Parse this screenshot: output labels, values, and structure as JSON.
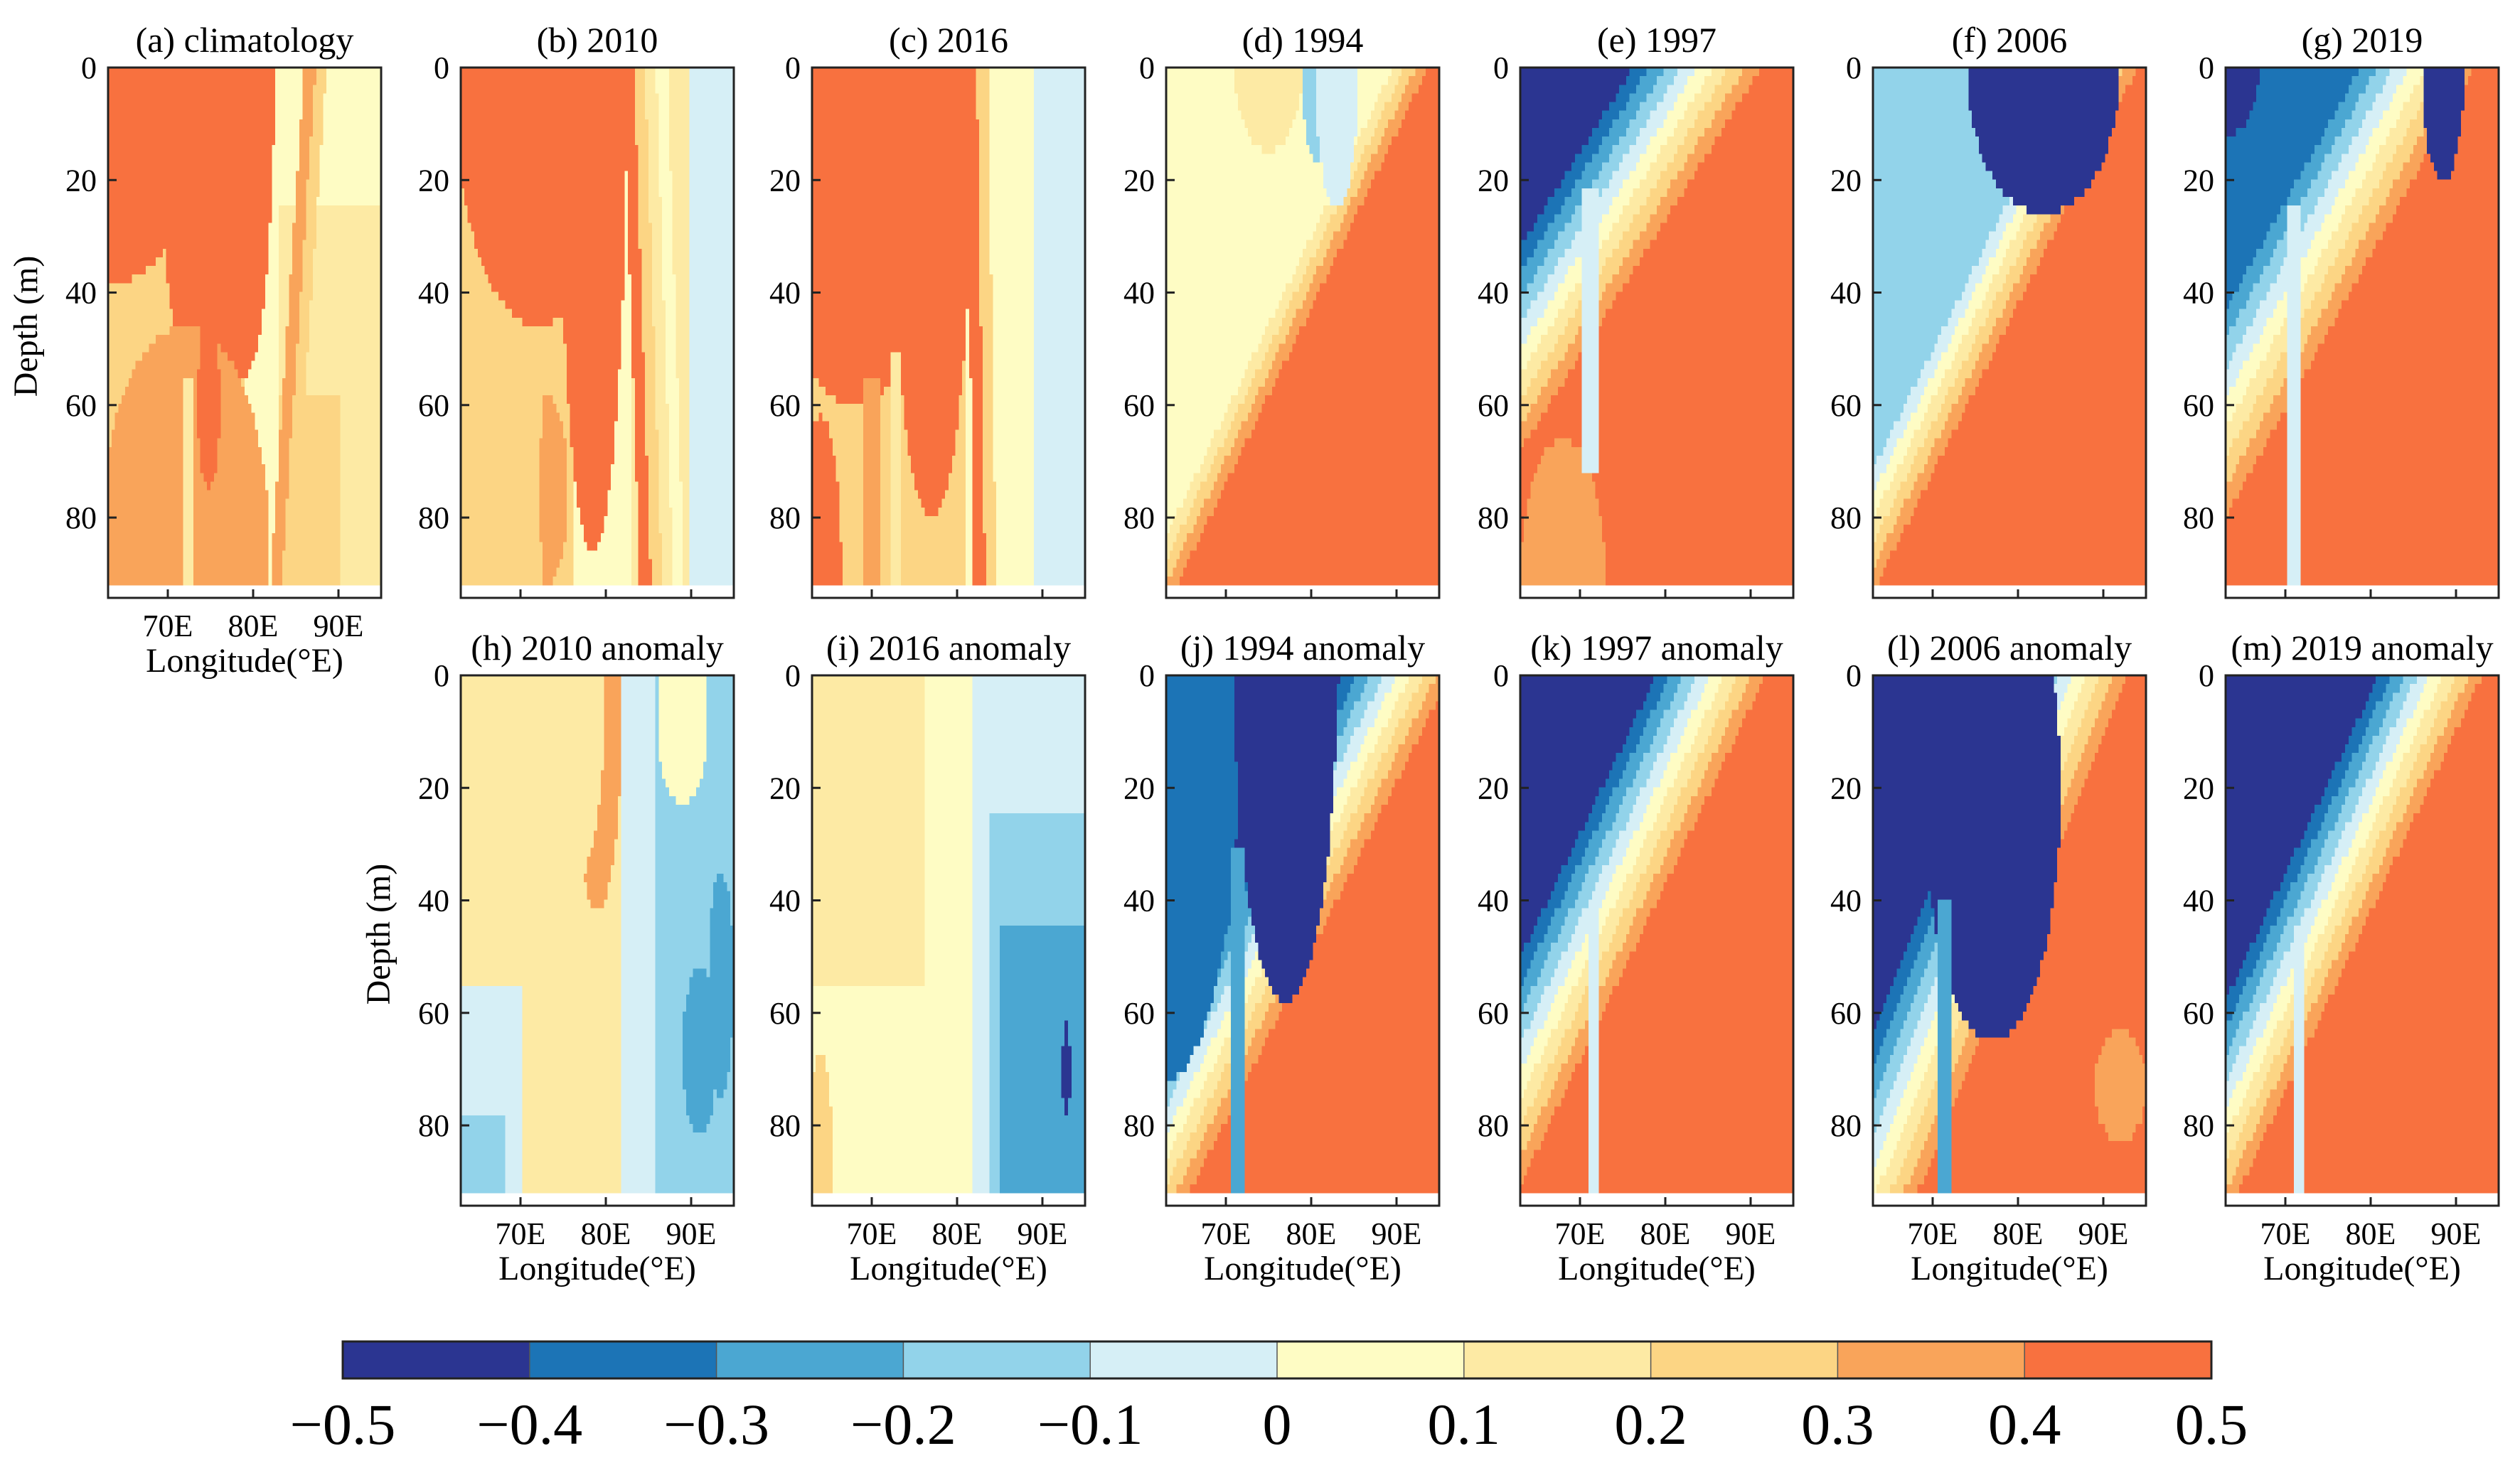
{
  "chart_data": {
    "type": "heatmap",
    "description": "Depth-longitude sections of a variable and its anomalies",
    "colorbar": {
      "ticks": [
        "−0.5",
        "−0.4",
        "−0.3",
        "−0.2",
        "−0.1",
        "0",
        "0.1",
        "0.2",
        "0.3",
        "0.4",
        "0.5"
      ],
      "bins": [
        {
          "from": -0.5,
          "to": -0.4,
          "color": "#2b3591"
        },
        {
          "from": -0.4,
          "to": -0.3,
          "color": "#1c74b6"
        },
        {
          "from": -0.3,
          "to": -0.2,
          "color": "#4ba7d2"
        },
        {
          "from": -0.2,
          "to": -0.1,
          "color": "#92d3ea"
        },
        {
          "from": -0.1,
          "to": 0.0,
          "color": "#d6eff6"
        },
        {
          "from": 0.0,
          "to": 0.1,
          "color": "#fefcc4"
        },
        {
          "from": 0.1,
          "to": 0.2,
          "color": "#fdeaa4"
        },
        {
          "from": 0.2,
          "to": 0.3,
          "color": "#fcd584"
        },
        {
          "from": 0.3,
          "to": 0.4,
          "color": "#f9a45a"
        },
        {
          "from": 0.4,
          "to": 0.5,
          "color": "#f8713f"
        }
      ]
    },
    "axes": {
      "xlabel": "Longitude(°E)",
      "ylabel": "Depth (m)",
      "xlim": [
        63,
        95
      ],
      "ylim": [
        0,
        92
      ],
      "xticks": [
        {
          "v": 70,
          "l": "70E"
        },
        {
          "v": 80,
          "l": "80E"
        },
        {
          "v": 90,
          "l": "90E"
        }
      ],
      "yticks": [
        {
          "v": 0,
          "l": "0"
        },
        {
          "v": 20,
          "l": "20"
        },
        {
          "v": 40,
          "l": "40"
        },
        {
          "v": 60,
          "l": "60"
        },
        {
          "v": 80,
          "l": "80"
        }
      ]
    },
    "panels": [
      {
        "id": "a",
        "title": "(a) climatology",
        "type": "clim",
        "ylabel": true,
        "xlabels": true,
        "layers": [
          [
            0.2,
            "x<=79"
          ],
          [
            0.1,
            "x>=83 && y>=25"
          ],
          [
            0.2,
            "x>=83 && x<=90 && y>=58"
          ]
        ],
        "fronts": [
          {
            "xs": 86,
            "xd": 82,
            "ys": 0,
            "yd": 0,
            "lv": [
              0.3,
              0.2
            ]
          }
        ],
        "blobs": [
          {
            "x": 64,
            "y": 0,
            "a": 11,
            "b": 38,
            "v": 0.4
          },
          {
            "x": 75,
            "y": 0,
            "a": 6,
            "b": 68,
            "v": 0.4
          },
          {
            "x": 79,
            "y": 0,
            "a": 3.5,
            "b": 55,
            "v": 0.4
          },
          {
            "x": 72,
            "y": 86,
            "a": 10,
            "b": 40,
            "v": 0.35
          },
          {
            "x": 74.8,
            "y": 60,
            "a": 1.3,
            "b": 15,
            "v": 0.4
          }
        ],
        "spikes": [
          {
            "x": 72.5,
            "y0": 55,
            "y1": 92,
            "w": 0.5,
            "v": 0.15
          }
        ]
      },
      {
        "id": "b",
        "title": "(b) 2010",
        "type": "clim",
        "ylabel": false,
        "xlabels": false,
        "layers": [
          [
            0.2,
            "x<=76"
          ],
          [
            0.15,
            "x>=83 && x<=90"
          ],
          [
            -0.05,
            "x>=90"
          ]
        ],
        "fronts": [
          {
            "xs": 82,
            "xd": 84,
            "ys": 0,
            "yd": 0,
            "lv": [
              0.45,
              0.25,
              0.15,
              0.05
            ]
          }
        ],
        "blobs": [
          {
            "x": 72,
            "y": 0,
            "a": 10,
            "b": 46,
            "v": 0.45
          },
          {
            "x": 78.5,
            "y": 0,
            "a": 4,
            "b": 86,
            "v": 0.45
          },
          {
            "x": 73.8,
            "y": 75,
            "a": 1.8,
            "b": 15,
            "v": 0.35
          }
        ],
        "spikes": [
          {
            "x": 73.3,
            "y0": 58,
            "y1": 92,
            "w": 0.5,
            "v": 0.3
          }
        ]
      },
      {
        "id": "c",
        "title": "(c) 2016",
        "type": "clim",
        "ylabel": false,
        "xlabels": false,
        "layers": [
          [
            0.25,
            "x<=81"
          ],
          [
            0.05,
            "x>=83 && x<=89"
          ],
          [
            -0.05,
            "x>=89"
          ]
        ],
        "fronts": [
          {
            "xs": 81,
            "xd": 82,
            "ys": 0,
            "yd": 0,
            "lv": [
              0.45,
              0.25,
              0.05
            ]
          }
        ],
        "blobs": [
          {
            "x": 68,
            "y": 0,
            "a": 12,
            "b": 60,
            "v": 0.45
          },
          {
            "x": 77,
            "y": 0,
            "a": 5,
            "b": 80,
            "v": 0.45
          },
          {
            "x": 64,
            "y": 92,
            "a": 2.5,
            "b": 30,
            "v": 0.45
          }
        ],
        "spikes": [
          {
            "x": 72.8,
            "y0": 50,
            "y1": 92,
            "w": 0.5,
            "v": 0.15
          },
          {
            "x": 70,
            "y0": 55,
            "y1": 92,
            "w": 0.8,
            "v": 0.35
          }
        ]
      },
      {
        "id": "d",
        "title": "(d) 1994",
        "type": "anom",
        "ylabel": false,
        "xlabels": false,
        "xs": 88,
        "xd": 80,
        "ys": 60,
        "yd": 0,
        "lv": [
          0.05,
          0.15,
          0.25,
          0.35,
          0.45
        ],
        "cold": [],
        "blobs": [
          {
            "x": 75,
            "y": 0,
            "a": 4,
            "b": 15,
            "v": 0.15
          },
          {
            "x": 80.5,
            "y": 0,
            "a": 1.5,
            "b": 17,
            "v": -0.15
          },
          {
            "x": 83,
            "y": 0,
            "a": 2.5,
            "b": 25,
            "v": -0.05
          }
        ],
        "spikes": []
      },
      {
        "id": "e",
        "title": "(e) 1997",
        "type": "anom",
        "ylabel": false,
        "xlabels": false,
        "xs": 78,
        "xd": 74,
        "ys": 28,
        "yd": 0,
        "lv": [
          -0.45,
          -0.35,
          -0.25,
          -0.15,
          -0.05,
          0.05,
          0.15,
          0.25,
          0.35,
          0.45
        ],
        "cold": [],
        "blobs": [
          {
            "x": 68,
            "y": 92,
            "a": 5,
            "b": 26,
            "v": 0.35
          }
        ],
        "spikes": [
          {
            "x": 71.2,
            "y0": 22,
            "y1": 72,
            "w": 0.9,
            "v": -0.05
          }
        ]
      },
      {
        "id": "f",
        "title": "(f) 2006",
        "type": "anom",
        "ylabel": false,
        "xlabels": false,
        "xs": 86,
        "xd": 80,
        "ys": 52,
        "yd": 0,
        "lv": [
          -0.15,
          -0.05,
          0.05,
          0.15,
          0.25,
          0.35,
          0.45
        ],
        "cold": [
          {
            "x": 83,
            "y": 0,
            "a": 9,
            "b": 26,
            "v": -0.45
          }
        ],
        "blobs": [],
        "spikes": []
      },
      {
        "id": "g",
        "title": "(g) 2019",
        "type": "anom",
        "ylabel": false,
        "xlabels": false,
        "xs": 81,
        "xd": 85,
        "ys": 26,
        "yd": 0,
        "lv": [
          -0.35,
          -0.25,
          -0.15,
          -0.05,
          0.05,
          0.15,
          0.25,
          0.35,
          0.45
        ],
        "cold": [
          {
            "x": 63,
            "y": 0,
            "a": 4,
            "b": 12,
            "v": -0.45
          },
          {
            "x": 88.5,
            "y": 0,
            "a": 2.5,
            "b": 20,
            "v": -0.45
          }
        ],
        "blobs": [
          {
            "x": 65,
            "y": 92,
            "a": 3,
            "b": 10,
            "v": 0.45
          }
        ],
        "spikes": [
          {
            "x": 71,
            "y0": 25,
            "y1": 92,
            "w": 0.9,
            "v": -0.05
          }
        ]
      },
      {
        "id": "h",
        "title": "(h) 2010 anomaly",
        "type": "clim",
        "ylabel": true,
        "xlabels": true,
        "layers": [
          [
            0.1,
            "x<=84"
          ],
          [
            -0.05,
            "x>=82 && x<=86"
          ],
          [
            -0.15,
            "x>=86"
          ],
          [
            -0.05,
            "x<=70 && y>=55"
          ],
          [
            -0.15,
            "x<=68 && y>=78"
          ]
        ],
        "fronts": [],
        "blobs": [
          {
            "x": 79,
            "y": 0,
            "a": 3,
            "b": 42,
            "v": 0.35
          },
          {
            "x": 76,
            "y": 0,
            "a": 4,
            "b": 38,
            "v": 0.15
          },
          {
            "x": 91,
            "y": 67,
            "a": 2,
            "b": 15,
            "v": -0.25
          },
          {
            "x": 93.5,
            "y": 55,
            "a": 1.5,
            "b": 20,
            "v": -0.25
          },
          {
            "x": 89,
            "y": 8,
            "a": 3,
            "b": 15,
            "v": 0.05
          }
        ],
        "spikes": []
      },
      {
        "id": "i",
        "title": "(i) 2016 anomaly",
        "type": "clim",
        "ylabel": false,
        "xlabels": true,
        "layers": [
          [
            0.05,
            "x<=83"
          ],
          [
            0.15,
            "x<=76 && y<=55"
          ],
          [
            -0.05,
            "x>=82"
          ],
          [
            -0.15,
            "x>=84 && y>=25"
          ],
          [
            -0.25,
            "x>=85 && y>=45"
          ]
        ],
        "fronts": [],
        "blobs": [
          {
            "x": 92.8,
            "y": 70,
            "a": 0.5,
            "b": 8,
            "v": -0.45
          },
          {
            "x": 64,
            "y": 92,
            "a": 1.5,
            "b": 25,
            "v": 0.25
          }
        ],
        "spikes": []
      },
      {
        "id": "j",
        "title": "(j) 1994 anomaly",
        "type": "anom",
        "ylabel": false,
        "xlabels": true,
        "xs": 86,
        "xd": 84,
        "ys": 45,
        "yd": 0,
        "lv": [
          -0.45,
          -0.35,
          -0.25,
          -0.15,
          -0.05,
          0.05,
          0.15,
          0.25,
          0.35,
          0.45
        ],
        "cold": [
          {
            "x": 63,
            "y": 0,
            "a": 9,
            "b": 72,
            "v": -0.35
          },
          {
            "x": 77,
            "y": 0,
            "a": 6,
            "b": 58,
            "v": -0.45
          }
        ],
        "blobs": [],
        "spikes": [
          {
            "x": 71.3,
            "y0": 30,
            "y1": 92,
            "w": 0.8,
            "v": -0.25
          }
        ]
      },
      {
        "id": "k",
        "title": "(k) 1997 anomaly",
        "type": "anom",
        "ylabel": false,
        "xlabels": true,
        "xs": 78,
        "xd": 80,
        "ys": 42,
        "yd": 0,
        "lv": [
          -0.45,
          -0.35,
          -0.25,
          -0.15,
          -0.05,
          0.05,
          0.15,
          0.25,
          0.35,
          0.45
        ],
        "cold": [],
        "blobs": [],
        "spikes": [
          {
            "x": 71.5,
            "y0": 40,
            "y1": 92,
            "w": 0.7,
            "v": -0.05
          }
        ]
      },
      {
        "id": "l",
        "title": "(l) 2006 anomaly",
        "type": "anom",
        "ylabel": false,
        "xlabels": true,
        "xs": 80,
        "xd": 90,
        "ys": 42,
        "yd": 0,
        "lv": [
          -0.45,
          -0.35,
          -0.25,
          -0.15,
          -0.05,
          0.05,
          0.15,
          0.25,
          0.35,
          0.45
        ],
        "cold": [
          {
            "x": 77,
            "y": 20,
            "a": 8,
            "b": 45,
            "v": -0.45
          }
        ],
        "blobs": [
          {
            "x": 92,
            "y": 73,
            "a": 3,
            "b": 10,
            "v": 0.35
          }
        ],
        "spikes": [
          {
            "x": 71.5,
            "y0": 40,
            "y1": 92,
            "w": 0.8,
            "v": -0.25
          }
        ]
      },
      {
        "id": "m",
        "title": "(m) 2019 anomaly",
        "type": "anom",
        "ylabel": false,
        "xlabels": true,
        "xs": 80,
        "xd": 80,
        "ys": 48,
        "yd": 0,
        "lv": [
          -0.45,
          -0.35,
          -0.25,
          -0.15,
          -0.05,
          0.05,
          0.15,
          0.25,
          0.35,
          0.45
        ],
        "cold": [],
        "blobs": [],
        "spikes": [
          {
            "x": 71.5,
            "y0": 45,
            "y1": 92,
            "w": 0.7,
            "v": -0.05
          }
        ]
      }
    ]
  }
}
